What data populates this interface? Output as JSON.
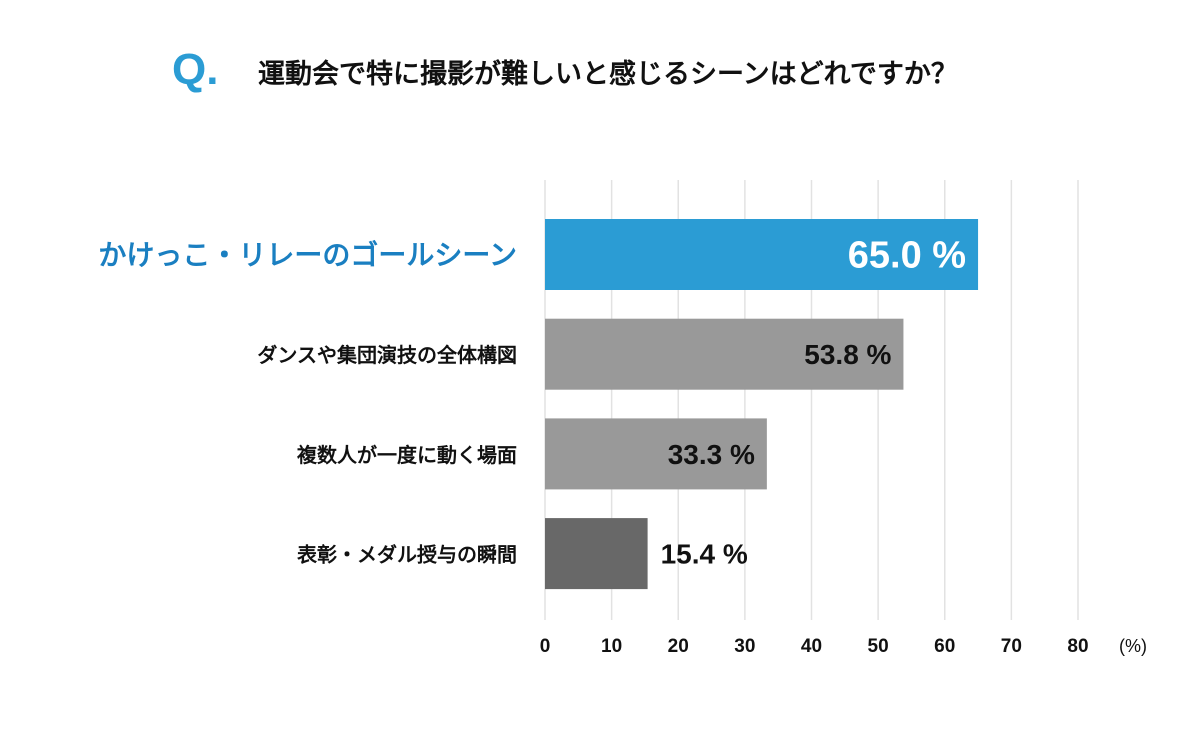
{
  "question_mark": "Q.",
  "title": "運動会で特に撮影が難しいと感じるシーンはどれですか？",
  "colors": {
    "highlight": "#2b9cd4",
    "highlight_label": "#1a7fc1",
    "bar_mid": "#999999",
    "bar_dark": "#686868",
    "grid": "#e2e2e2"
  },
  "chart_data": {
    "type": "bar",
    "orientation": "horizontal",
    "title": "運動会で特に撮影が難しいと感じるシーンはどれですか？",
    "categories": [
      "かけっこ・リレーのゴールシーン",
      "ダンスや集団演技の全体構図",
      "複数人が一度に動く場面",
      "表彰・メダル授与の瞬間"
    ],
    "values": [
      65.0,
      53.8,
      33.3,
      15.4
    ],
    "value_labels": [
      "65.0 %",
      "53.8 %",
      "33.3 %",
      "15.4 %"
    ],
    "xticks": [
      "0",
      "10",
      "20",
      "30",
      "40",
      "50",
      "60",
      "70",
      "80"
    ],
    "xunit": "(%)",
    "xlim": [
      0,
      80
    ],
    "grid": true,
    "xlabel": "",
    "ylabel": ""
  }
}
